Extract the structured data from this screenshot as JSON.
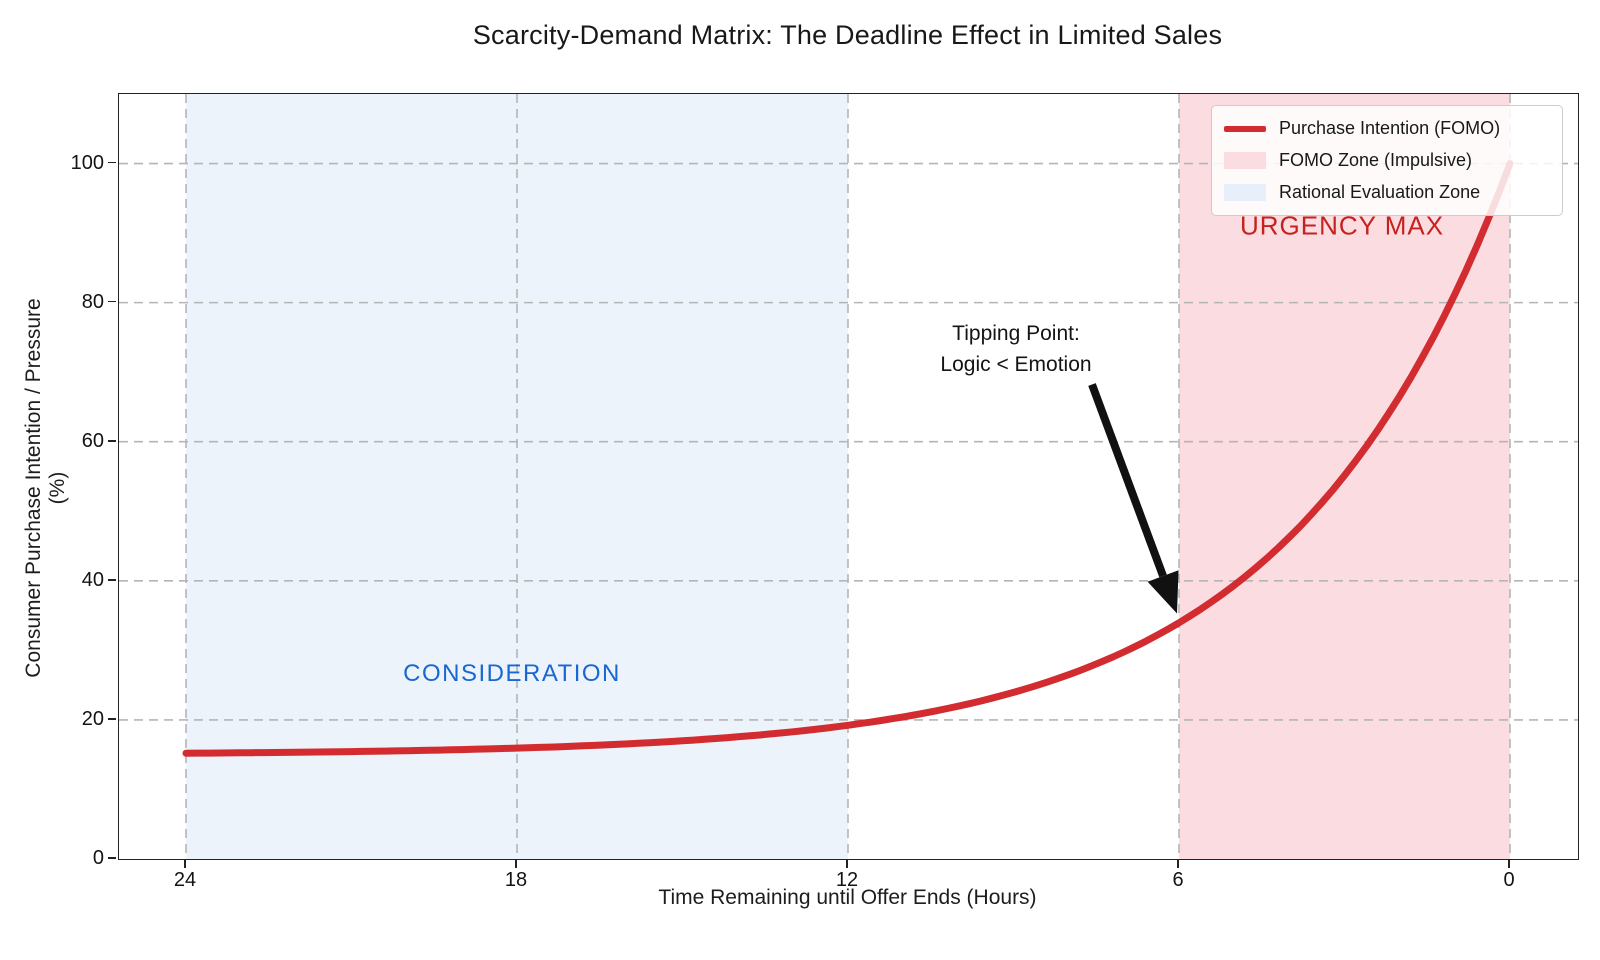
{
  "title": "Scarcity-Demand Matrix: The Deadline Effect in Limited Sales",
  "axes": {
    "x_label": "Time Remaining until Offer Ends (Hours)",
    "y_label": "Consumer Purchase Intention / Pressure (%)",
    "x_ticks": [
      "24",
      "18",
      "12",
      "6",
      "0"
    ],
    "y_ticks": [
      "0",
      "20",
      "40",
      "60",
      "80",
      "100"
    ]
  },
  "legend": [
    {
      "type": "line",
      "color": "#d22c31",
      "label": "Purchase Intention (FOMO)"
    },
    {
      "type": "patch",
      "color": "#fbdce0",
      "label": "FOMO Zone (Impulsive)"
    },
    {
      "type": "patch",
      "color": "#e7f0fa",
      "label": "Rational Evaluation Zone"
    }
  ],
  "annotations": {
    "tipping_line1": "Tipping Point:",
    "tipping_line2": "Logic < Emotion",
    "urgency": "URGENCY MAX",
    "consideration": "CONSIDERATION"
  },
  "chart_data": {
    "type": "line",
    "title": "Scarcity-Demand Matrix: The Deadline Effect in Limited Sales",
    "xlabel": "Time Remaining until Offer Ends (Hours)",
    "ylabel": "Consumer Purchase Intention / Pressure (%)",
    "x_reversed": true,
    "xlim": [
      25.2,
      -1.2
    ],
    "ylim": [
      0,
      110
    ],
    "grid": "dashed",
    "x_tick_values": [
      24,
      18,
      12,
      6,
      0
    ],
    "y_tick_values": [
      0,
      20,
      40,
      60,
      80,
      100
    ],
    "zones": [
      {
        "name": "Rational Evaluation Zone",
        "from": 24,
        "to": 12,
        "color": "#edf3fa",
        "label": "CONSIDERATION"
      },
      {
        "name": "FOMO Zone (Impulsive)",
        "from": 6,
        "to": 0,
        "color": "#fbdce0",
        "label": "URGENCY MAX"
      }
    ],
    "series": [
      {
        "name": "Purchase Intention (FOMO)",
        "color": "#d22c31",
        "x": [
          24,
          23,
          22,
          21,
          20,
          19,
          18,
          17,
          16,
          15,
          14,
          13,
          12,
          11,
          10,
          9,
          8,
          7,
          6,
          5,
          4,
          3,
          2,
          1,
          0
        ],
        "y": [
          15.2,
          15.3,
          15.3,
          15.5,
          15.6,
          15.7,
          15.9,
          16.2,
          16.6,
          17.0,
          17.6,
          18.3,
          19.2,
          20.4,
          22.0,
          24.0,
          26.5,
          29.8,
          34.0,
          39.4,
          46.3,
          55.2,
          66.6,
          81.2,
          100
        ]
      }
    ],
    "curve_model": {
      "base": 15,
      "amplitude": 85,
      "tau": 4,
      "t_start": 24,
      "t_end": 0
    },
    "tipping_point": {
      "x": 6,
      "y": 34
    },
    "legend_position": "upper right"
  }
}
